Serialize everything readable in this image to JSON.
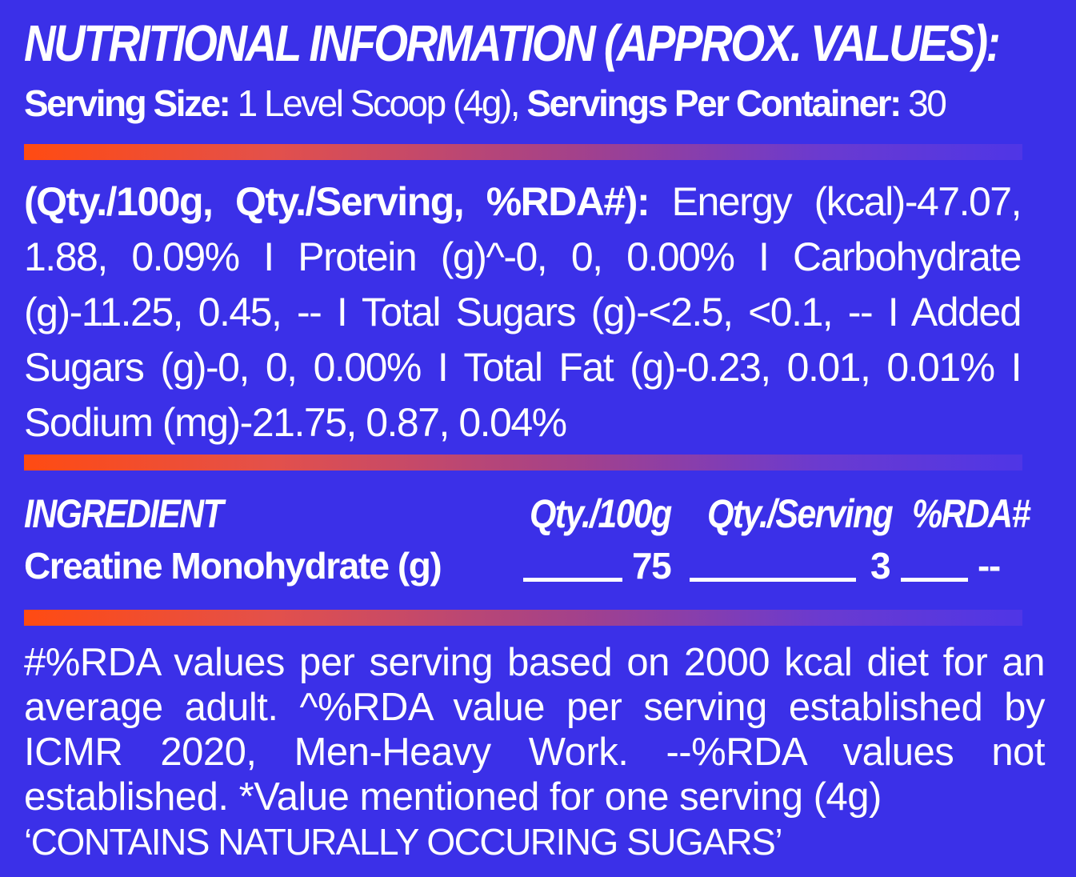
{
  "title": "NUTRITIONAL INFORMATION (APPROX. VALUES):",
  "serving": {
    "size_label": "Serving Size:",
    "size_value": " 1 Level Scoop (4g), ",
    "per_container_label": "Servings Per Container:",
    "per_container_value": " 30"
  },
  "nutrition": {
    "header": "(Qty./100g, Qty./Serving, %RDA#):",
    "body": " Energy (kcal)-47.07, 1.88, 0.09% I Protein (g)^-0, 0, 0.00% I Carbohydrate (g)-11.25, 0.45, -- I Total Sugars (g)-<2.5, <0.1, -- I Added Sugars (g)-0, 0, 0.00% I Total Fat (g)-0.23, 0.01, 0.01% I Sodium (mg)-21.75, 0.87, 0.04%"
  },
  "ingredients": {
    "headers": {
      "name": "INGREDIENT",
      "per_100g": "Qty./100g",
      "per_serving": "Qty./Serving",
      "rda": "%RDA#"
    },
    "rows": [
      {
        "name": "Creatine Monohydrate (g)",
        "per_100g": "75",
        "per_serving": "3",
        "rda": "--"
      }
    ]
  },
  "footnote": "#%RDA values per serving based on 2000 kcal diet for an average adult. ^%RDA value per serving established by ICMR 2020, Men-Heavy Work. --%RDA values not established. *Value mentioned for one serving (4g)",
  "contains_note": "‘CONTAINS NATURALLY OCCURING SUGARS’",
  "colors": {
    "background": "#3b30e8",
    "text": "#ffffff",
    "divider_start": "#ff4b12",
    "divider_end": "#4f36e6"
  }
}
